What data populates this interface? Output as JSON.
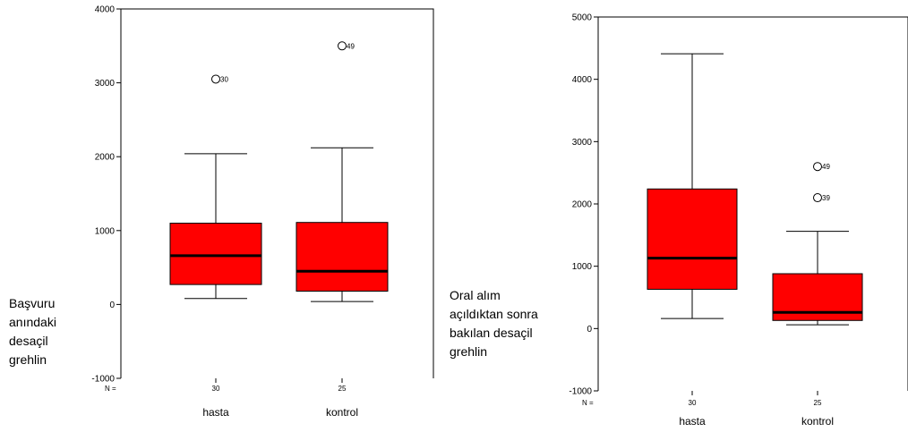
{
  "chart_data": [
    {
      "type": "box",
      "ylabel_lines": [
        "Başvuru",
        "anındaki",
        "desaçil",
        "grehlin"
      ],
      "ylim": [
        -1000,
        4000
      ],
      "yticks": [
        "4000",
        "3000",
        "2000",
        "1000",
        "0",
        "-1000"
      ],
      "n_label": "N =",
      "box_color": "#ff0000",
      "groups": [
        {
          "name": "hasta",
          "n": "30",
          "whisker_low": 80,
          "q1": 270,
          "median": 660,
          "q3": 1100,
          "whisker_high": 2040,
          "outliers": [
            {
              "value": 3050,
              "label": "30"
            }
          ]
        },
        {
          "name": "kontrol",
          "n": "25",
          "whisker_low": 40,
          "q1": 180,
          "median": 450,
          "q3": 1110,
          "whisker_high": 2120,
          "outliers": [
            {
              "value": 3500,
              "label": "49"
            }
          ]
        }
      ]
    },
    {
      "type": "box",
      "ylabel_lines": [
        "Oral alım",
        "açıldıktan sonra",
        "bakılan desaçil",
        "grehlin"
      ],
      "ylim": [
        -1000,
        5000
      ],
      "yticks": [
        "5000",
        "4000",
        "3000",
        "2000",
        "1000",
        "0",
        "-1000"
      ],
      "n_label": "N =",
      "box_color": "#ff0000",
      "groups": [
        {
          "name": "hasta",
          "n": "30",
          "whisker_low": 160,
          "q1": 630,
          "median": 1130,
          "q3": 2240,
          "whisker_high": 4410,
          "outliers": []
        },
        {
          "name": "kontrol",
          "n": "25",
          "whisker_low": 60,
          "q1": 130,
          "median": 260,
          "q3": 880,
          "whisker_high": 1560,
          "outliers": [
            {
              "value": 2600,
              "label": "49"
            },
            {
              "value": 2100,
              "label": "39"
            }
          ]
        }
      ]
    }
  ]
}
